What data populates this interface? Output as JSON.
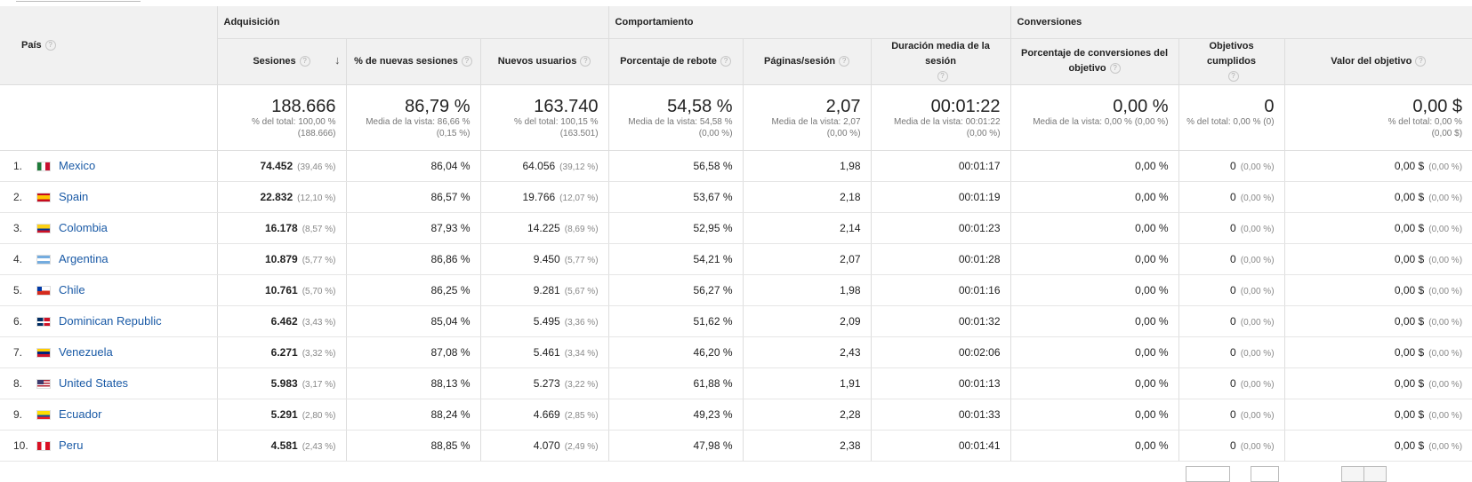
{
  "groups": {
    "adquisicion": "Adquisición",
    "comportamiento": "Comportamiento",
    "conversiones": "Conversiones"
  },
  "columns": {
    "pais": "País",
    "sesiones": "Sesiones",
    "nuevas": "% de nuevas sesiones",
    "nuevos_usuarios": "Nuevos usuarios",
    "rebote": "Porcentaje de rebote",
    "paginas": "Páginas/sesión",
    "duracion": "Duración media de la sesión",
    "conv": "Porcentaje de conversiones del objetivo",
    "objetivos": "Objetivos cumplidos",
    "valor": "Valor del objetivo"
  },
  "help_glyph": "?",
  "sort_glyph": "↓",
  "totals": [
    {
      "value": "188.666",
      "sub1": "% del total: 100,00 %",
      "sub2": "(188.666)"
    },
    {
      "value": "86,79 %",
      "sub1": "Media de la vista: 86,66 %",
      "sub2": "(0,15 %)"
    },
    {
      "value": "163.740",
      "sub1": "% del total: 100,15 %",
      "sub2": "(163.501)"
    },
    {
      "value": "54,58 %",
      "sub1": "Media de la vista: 54,58 %",
      "sub2": "(0,00 %)"
    },
    {
      "value": "2,07",
      "sub1": "Media de la vista: 2,07",
      "sub2": "(0,00 %)"
    },
    {
      "value": "00:01:22",
      "sub1": "Media de la vista: 00:01:22",
      "sub2": "(0,00 %)"
    },
    {
      "value": "0,00 %",
      "sub1": "Media de la vista: 0,00 % (0,00 %)",
      "sub2": ""
    },
    {
      "value": "0",
      "sub1": "% del total: 0,00 % (0)",
      "sub2": ""
    },
    {
      "value": "0,00 $",
      "sub1": "% del total: 0,00 %",
      "sub2": "(0,00 $)"
    }
  ],
  "rows": [
    {
      "idx": "1.",
      "country": "Mexico",
      "flag": "mx",
      "sesiones": "74.452",
      "ses_pct": "(39,46 %)",
      "nuevas": "86,04 %",
      "usuarios": "64.056",
      "us_pct": "(39,12 %)",
      "rebote": "56,58 %",
      "paginas": "1,98",
      "duracion": "00:01:17",
      "conv": "0,00 %",
      "obj": "0",
      "obj_pct": "(0,00 %)",
      "valor": "0,00 $",
      "val_pct": "(0,00 %)"
    },
    {
      "idx": "2.",
      "country": "Spain",
      "flag": "es",
      "sesiones": "22.832",
      "ses_pct": "(12,10 %)",
      "nuevas": "86,57 %",
      "usuarios": "19.766",
      "us_pct": "(12,07 %)",
      "rebote": "53,67 %",
      "paginas": "2,18",
      "duracion": "00:01:19",
      "conv": "0,00 %",
      "obj": "0",
      "obj_pct": "(0,00 %)",
      "valor": "0,00 $",
      "val_pct": "(0,00 %)"
    },
    {
      "idx": "3.",
      "country": "Colombia",
      "flag": "co",
      "sesiones": "16.178",
      "ses_pct": "(8,57 %)",
      "nuevas": "87,93 %",
      "usuarios": "14.225",
      "us_pct": "(8,69 %)",
      "rebote": "52,95 %",
      "paginas": "2,14",
      "duracion": "00:01:23",
      "conv": "0,00 %",
      "obj": "0",
      "obj_pct": "(0,00 %)",
      "valor": "0,00 $",
      "val_pct": "(0,00 %)"
    },
    {
      "idx": "4.",
      "country": "Argentina",
      "flag": "ar",
      "sesiones": "10.879",
      "ses_pct": "(5,77 %)",
      "nuevas": "86,86 %",
      "usuarios": "9.450",
      "us_pct": "(5,77 %)",
      "rebote": "54,21 %",
      "paginas": "2,07",
      "duracion": "00:01:28",
      "conv": "0,00 %",
      "obj": "0",
      "obj_pct": "(0,00 %)",
      "valor": "0,00 $",
      "val_pct": "(0,00 %)"
    },
    {
      "idx": "5.",
      "country": "Chile",
      "flag": "cl",
      "sesiones": "10.761",
      "ses_pct": "(5,70 %)",
      "nuevas": "86,25 %",
      "usuarios": "9.281",
      "us_pct": "(5,67 %)",
      "rebote": "56,27 %",
      "paginas": "1,98",
      "duracion": "00:01:16",
      "conv": "0,00 %",
      "obj": "0",
      "obj_pct": "(0,00 %)",
      "valor": "0,00 $",
      "val_pct": "(0,00 %)"
    },
    {
      "idx": "6.",
      "country": "Dominican Republic",
      "flag": "do",
      "sesiones": "6.462",
      "ses_pct": "(3,43 %)",
      "nuevas": "85,04 %",
      "usuarios": "5.495",
      "us_pct": "(3,36 %)",
      "rebote": "51,62 %",
      "paginas": "2,09",
      "duracion": "00:01:32",
      "conv": "0,00 %",
      "obj": "0",
      "obj_pct": "(0,00 %)",
      "valor": "0,00 $",
      "val_pct": "(0,00 %)"
    },
    {
      "idx": "7.",
      "country": "Venezuela",
      "flag": "ve",
      "sesiones": "6.271",
      "ses_pct": "(3,32 %)",
      "nuevas": "87,08 %",
      "usuarios": "5.461",
      "us_pct": "(3,34 %)",
      "rebote": "46,20 %",
      "paginas": "2,43",
      "duracion": "00:02:06",
      "conv": "0,00 %",
      "obj": "0",
      "obj_pct": "(0,00 %)",
      "valor": "0,00 $",
      "val_pct": "(0,00 %)"
    },
    {
      "idx": "8.",
      "country": "United States",
      "flag": "us",
      "sesiones": "5.983",
      "ses_pct": "(3,17 %)",
      "nuevas": "88,13 %",
      "usuarios": "5.273",
      "us_pct": "(3,22 %)",
      "rebote": "61,88 %",
      "paginas": "1,91",
      "duracion": "00:01:13",
      "conv": "0,00 %",
      "obj": "0",
      "obj_pct": "(0,00 %)",
      "valor": "0,00 $",
      "val_pct": "(0,00 %)"
    },
    {
      "idx": "9.",
      "country": "Ecuador",
      "flag": "ec",
      "sesiones": "5.291",
      "ses_pct": "(2,80 %)",
      "nuevas": "88,24 %",
      "usuarios": "4.669",
      "us_pct": "(2,85 %)",
      "rebote": "49,23 %",
      "paginas": "2,28",
      "duracion": "00:01:33",
      "conv": "0,00 %",
      "obj": "0",
      "obj_pct": "(0,00 %)",
      "valor": "0,00 $",
      "val_pct": "(0,00 %)"
    },
    {
      "idx": "10.",
      "country": "Peru",
      "flag": "pe",
      "sesiones": "4.581",
      "ses_pct": "(2,43 %)",
      "nuevas": "88,85 %",
      "usuarios": "4.070",
      "us_pct": "(2,49 %)",
      "rebote": "47,98 %",
      "paginas": "2,38",
      "duracion": "00:01:41",
      "conv": "0,00 %",
      "obj": "0",
      "obj_pct": "(0,00 %)",
      "valor": "0,00 $",
      "val_pct": "(0,00 %)"
    }
  ],
  "colors": {
    "link": "#1a5aa6",
    "header_bg": "#f1f1f1",
    "border": "#dddddd",
    "muted": "#888888"
  }
}
